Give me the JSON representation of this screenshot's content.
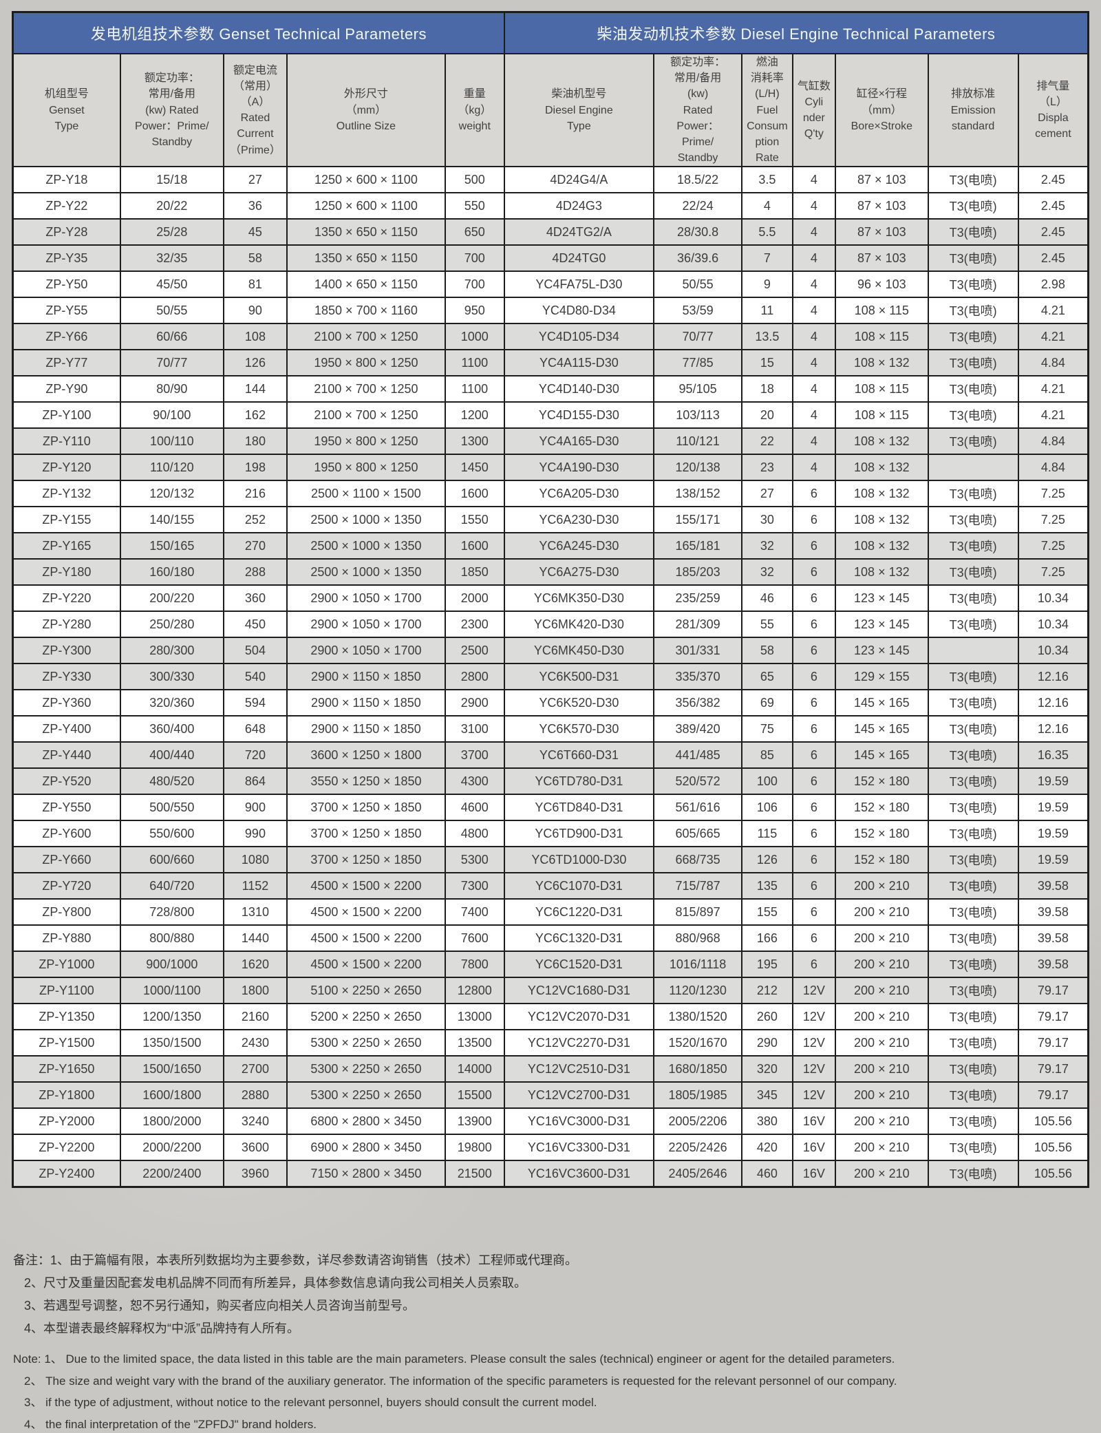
{
  "colors": {
    "header_blue": "#4b69a6",
    "header_gray": "#d8d7d4",
    "row_gray": "#dcdcda",
    "row_white": "#ffffff",
    "border": "#1d1d1d",
    "page_bg": "#c9c7c4"
  },
  "table": {
    "section_headers": [
      "发电机组技术参数 Genset Technical Parameters",
      "柴油发动机技术参数 Diesel Engine Technical Parameters"
    ],
    "column_keys": [
      "genset-type",
      "rated-power",
      "rated-current",
      "outline-size",
      "weight",
      "engine-type",
      "engine-power",
      "fuel-rate",
      "cylinder-qty",
      "bore-stroke",
      "emission",
      "displacement"
    ],
    "columns": [
      "机组型号\nGenset\nType",
      "额定功率：\n常用/备用\n(kw) Rated\nPower：Prime/\nStandby",
      "额定电流\n（常用）\n（A）\nRated\nCurrent\n（Prime）",
      "外形尺寸\n（mm）\nOutline Size",
      "重量\n（kg）\nweight",
      "柴油机型号\nDiesel Engine\nType",
      "额定功率：\n常用/备用\n(kw)\nRated\nPower：\nPrime/\nStandby",
      "燃油\n消耗率\n(L/H)\nFuel\nConsum\nption\nRate",
      "气缸数\nCyli\nnder\nQ'ty",
      "缸径×行程\n（mm）\nBore×Stroke",
      "排放标准\nEmission\nstandard",
      "排气量\n（L）\nDispla\ncement"
    ],
    "rows": [
      [
        "ZP-Y18",
        "15/18",
        "27",
        "1250 × 600 × 1100",
        "500",
        "4D24G4/A",
        "18.5/22",
        "3.5",
        "4",
        "87 × 103",
        "T3(电喷)",
        "2.45"
      ],
      [
        "ZP-Y22",
        "20/22",
        "36",
        "1250 × 600 × 1100",
        "550",
        "4D24G3",
        "22/24",
        "4",
        "4",
        "87 × 103",
        "T3(电喷)",
        "2.45"
      ],
      [
        "ZP-Y28",
        "25/28",
        "45",
        "1350 × 650 × 1150",
        "650",
        "4D24TG2/A",
        "28/30.8",
        "5.5",
        "4",
        "87 × 103",
        "T3(电喷)",
        "2.45"
      ],
      [
        "ZP-Y35",
        "32/35",
        "58",
        "1350 × 650 × 1150",
        "700",
        "4D24TG0",
        "36/39.6",
        "7",
        "4",
        "87 × 103",
        "T3(电喷)",
        "2.45"
      ],
      [
        "ZP-Y50",
        "45/50",
        "81",
        "1400 × 650 × 1150",
        "700",
        "YC4FA75L-D30",
        "50/55",
        "9",
        "4",
        "96 × 103",
        "T3(电喷)",
        "2.98"
      ],
      [
        "ZP-Y55",
        "50/55",
        "90",
        "1850 × 700 × 1160",
        "950",
        "YC4D80-D34",
        "53/59",
        "11",
        "4",
        "108 × 115",
        "T3(电喷)",
        "4.21"
      ],
      [
        "ZP-Y66",
        "60/66",
        "108",
        "2100 × 700 × 1250",
        "1000",
        "YC4D105-D34",
        "70/77",
        "13.5",
        "4",
        "108 × 115",
        "T3(电喷)",
        "4.21"
      ],
      [
        "ZP-Y77",
        "70/77",
        "126",
        "1950 × 800 × 1250",
        "1100",
        "YC4A115-D30",
        "77/85",
        "15",
        "4",
        "108 × 132",
        "T3(电喷)",
        "4.84"
      ],
      [
        "ZP-Y90",
        "80/90",
        "144",
        "2100 × 700 × 1250",
        "1100",
        "YC4D140-D30",
        "95/105",
        "18",
        "4",
        "108 × 115",
        "T3(电喷)",
        "4.21"
      ],
      [
        "ZP-Y100",
        "90/100",
        "162",
        "2100 × 700 × 1250",
        "1200",
        "YC4D155-D30",
        "103/113",
        "20",
        "4",
        "108 × 115",
        "T3(电喷)",
        "4.21"
      ],
      [
        "ZP-Y110",
        "100/110",
        "180",
        "1950 × 800 × 1250",
        "1300",
        "YC4A165-D30",
        "110/121",
        "22",
        "4",
        "108 × 132",
        "T3(电喷)",
        "4.84"
      ],
      [
        "ZP-Y120",
        "110/120",
        "198",
        "1950 × 800 × 1250",
        "1450",
        "YC4A190-D30",
        "120/138",
        "23",
        "4",
        "108 × 132",
        "",
        "4.84"
      ],
      [
        "ZP-Y132",
        "120/132",
        "216",
        "2500 × 1100 × 1500",
        "1600",
        "YC6A205-D30",
        "138/152",
        "27",
        "6",
        "108 × 132",
        "T3(电喷)",
        "7.25"
      ],
      [
        "ZP-Y155",
        "140/155",
        "252",
        "2500 × 1000 × 1350",
        "1550",
        "YC6A230-D30",
        "155/171",
        "30",
        "6",
        "108 × 132",
        "T3(电喷)",
        "7.25"
      ],
      [
        "ZP-Y165",
        "150/165",
        "270",
        "2500 × 1000 × 1350",
        "1600",
        "YC6A245-D30",
        "165/181",
        "32",
        "6",
        "108 × 132",
        "T3(电喷)",
        "7.25"
      ],
      [
        "ZP-Y180",
        "160/180",
        "288",
        "2500 × 1000 × 1350",
        "1850",
        "YC6A275-D30",
        "185/203",
        "32",
        "6",
        "108 × 132",
        "T3(电喷)",
        "7.25"
      ],
      [
        "ZP-Y220",
        "200/220",
        "360",
        "2900 × 1050 × 1700",
        "2000",
        "YC6MK350-D30",
        "235/259",
        "46",
        "6",
        "123 × 145",
        "T3(电喷)",
        "10.34"
      ],
      [
        "ZP-Y280",
        "250/280",
        "450",
        "2900 × 1050 × 1700",
        "2300",
        "YC6MK420-D30",
        "281/309",
        "55",
        "6",
        "123 × 145",
        "T3(电喷)",
        "10.34"
      ],
      [
        "ZP-Y300",
        "280/300",
        "504",
        "2900 × 1050 × 1700",
        "2500",
        "YC6MK450-D30",
        "301/331",
        "58",
        "6",
        "123 × 145",
        "",
        "10.34"
      ],
      [
        "ZP-Y330",
        "300/330",
        "540",
        "2900 × 1150 × 1850",
        "2800",
        "YC6K500-D31",
        "335/370",
        "65",
        "6",
        "129 × 155",
        "T3(电喷)",
        "12.16"
      ],
      [
        "ZP-Y360",
        "320/360",
        "594",
        "2900 × 1150 × 1850",
        "2900",
        "YC6K520-D30",
        "356/382",
        "69",
        "6",
        "145 × 165",
        "T3(电喷)",
        "12.16"
      ],
      [
        "ZP-Y400",
        "360/400",
        "648",
        "2900 × 1150 × 1850",
        "3100",
        "YC6K570-D30",
        "389/420",
        "75",
        "6",
        "145 × 165",
        "T3(电喷)",
        "12.16"
      ],
      [
        "ZP-Y440",
        "400/440",
        "720",
        "3600 × 1250 × 1800",
        "3700",
        "YC6T660-D31",
        "441/485",
        "85",
        "6",
        "145 × 165",
        "T3(电喷)",
        "16.35"
      ],
      [
        "ZP-Y520",
        "480/520",
        "864",
        "3550 × 1250 × 1850",
        "4300",
        "YC6TD780-D31",
        "520/572",
        "100",
        "6",
        "152 × 180",
        "T3(电喷)",
        "19.59"
      ],
      [
        "ZP-Y550",
        "500/550",
        "900",
        "3700 × 1250 × 1850",
        "4600",
        "YC6TD840-D31",
        "561/616",
        "106",
        "6",
        "152 × 180",
        "T3(电喷)",
        "19.59"
      ],
      [
        "ZP-Y600",
        "550/600",
        "990",
        "3700 × 1250 × 1850",
        "4800",
        "YC6TD900-D31",
        "605/665",
        "115",
        "6",
        "152 × 180",
        "T3(电喷)",
        "19.59"
      ],
      [
        "ZP-Y660",
        "600/660",
        "1080",
        "3700 × 1250 × 1850",
        "5300",
        "YC6TD1000-D30",
        "668/735",
        "126",
        "6",
        "152 × 180",
        "T3(电喷)",
        "19.59"
      ],
      [
        "ZP-Y720",
        "640/720",
        "1152",
        "4500 × 1500 × 2200",
        "7300",
        "YC6C1070-D31",
        "715/787",
        "135",
        "6",
        "200 × 210",
        "T3(电喷)",
        "39.58"
      ],
      [
        "ZP-Y800",
        "728/800",
        "1310",
        "4500 × 1500 × 2200",
        "7400",
        "YC6C1220-D31",
        "815/897",
        "155",
        "6",
        "200 × 210",
        "T3(电喷)",
        "39.58"
      ],
      [
        "ZP-Y880",
        "800/880",
        "1440",
        "4500 × 1500 × 2200",
        "7600",
        "YC6C1320-D31",
        "880/968",
        "166",
        "6",
        "200 × 210",
        "T3(电喷)",
        "39.58"
      ],
      [
        "ZP-Y1000",
        "900/1000",
        "1620",
        "4500 × 1500 × 2200",
        "7800",
        "YC6C1520-D31",
        "1016/1118",
        "195",
        "6",
        "200 × 210",
        "T3(电喷)",
        "39.58"
      ],
      [
        "ZP-Y1100",
        "1000/1100",
        "1800",
        "5100 × 2250 × 2650",
        "12800",
        "YC12VC1680-D31",
        "1120/1230",
        "212",
        "12V",
        "200 × 210",
        "T3(电喷)",
        "79.17"
      ],
      [
        "ZP-Y1350",
        "1200/1350",
        "2160",
        "5200 × 2250 × 2650",
        "13000",
        "YC12VC2070-D31",
        "1380/1520",
        "260",
        "12V",
        "200 × 210",
        "T3(电喷)",
        "79.17"
      ],
      [
        "ZP-Y1500",
        "1350/1500",
        "2430",
        "5300 × 2250 × 2650",
        "13500",
        "YC12VC2270-D31",
        "1520/1670",
        "290",
        "12V",
        "200 × 210",
        "T3(电喷)",
        "79.17"
      ],
      [
        "ZP-Y1650",
        "1500/1650",
        "2700",
        "5300 × 2250 × 2650",
        "14000",
        "YC12VC2510-D31",
        "1680/1850",
        "320",
        "12V",
        "200 × 210",
        "T3(电喷)",
        "79.17"
      ],
      [
        "ZP-Y1800",
        "1600/1800",
        "2880",
        "5300 × 2250 × 2650",
        "15500",
        "YC12VC2700-D31",
        "1805/1985",
        "345",
        "12V",
        "200 × 210",
        "T3(电喷)",
        "79.17"
      ],
      [
        "ZP-Y2000",
        "1800/2000",
        "3240",
        "6800 × 2800 × 3450",
        "13900",
        "YC16VC3000-D31",
        "2005/2206",
        "380",
        "16V",
        "200 × 210",
        "T3(电喷)",
        "105.56"
      ],
      [
        "ZP-Y2200",
        "2000/2200",
        "3600",
        "6900 × 2800 × 3450",
        "19800",
        "YC16VC3300-D31",
        "2205/2426",
        "420",
        "16V",
        "200 × 210",
        "T3(电喷)",
        "105.56"
      ],
      [
        "ZP-Y2400",
        "2200/2400",
        "3960",
        "7150 × 2800 × 3450",
        "21500",
        "YC16VC3600-D31",
        "2405/2646",
        "460",
        "16V",
        "200 × 210",
        "T3(电喷)",
        "105.56"
      ]
    ]
  },
  "notes": {
    "zh": [
      "备注：1、由于篇幅有限，本表所列数据均为主要参数，详尽参数请咨询销售（技术）工程师或代理商。",
      "2、尺寸及重量因配套发电机品牌不同而有所差异，具体参数信息请向我公司相关人员索取。",
      "3、若遇型号调整，恕不另行通知，购买者应向相关人员咨询当前型号。",
      "4、本型谱表最终解释权为“中派”品牌持有人所有。"
    ],
    "en": [
      "Note: 1、  Due to the limited space, the data listed in this table are the main parameters. Please consult the sales (technical) engineer or agent for the detailed parameters.",
      "2、  The size and weight vary with the brand of the auxiliary generator. The information of the specific parameters is requested for the relevant personnel of our company.",
      "3、  if the type of adjustment, without notice to the relevant personnel, buyers should consult the current model.",
      "4、  the final interpretation of the \"ZPFDJ\" brand holders."
    ]
  }
}
